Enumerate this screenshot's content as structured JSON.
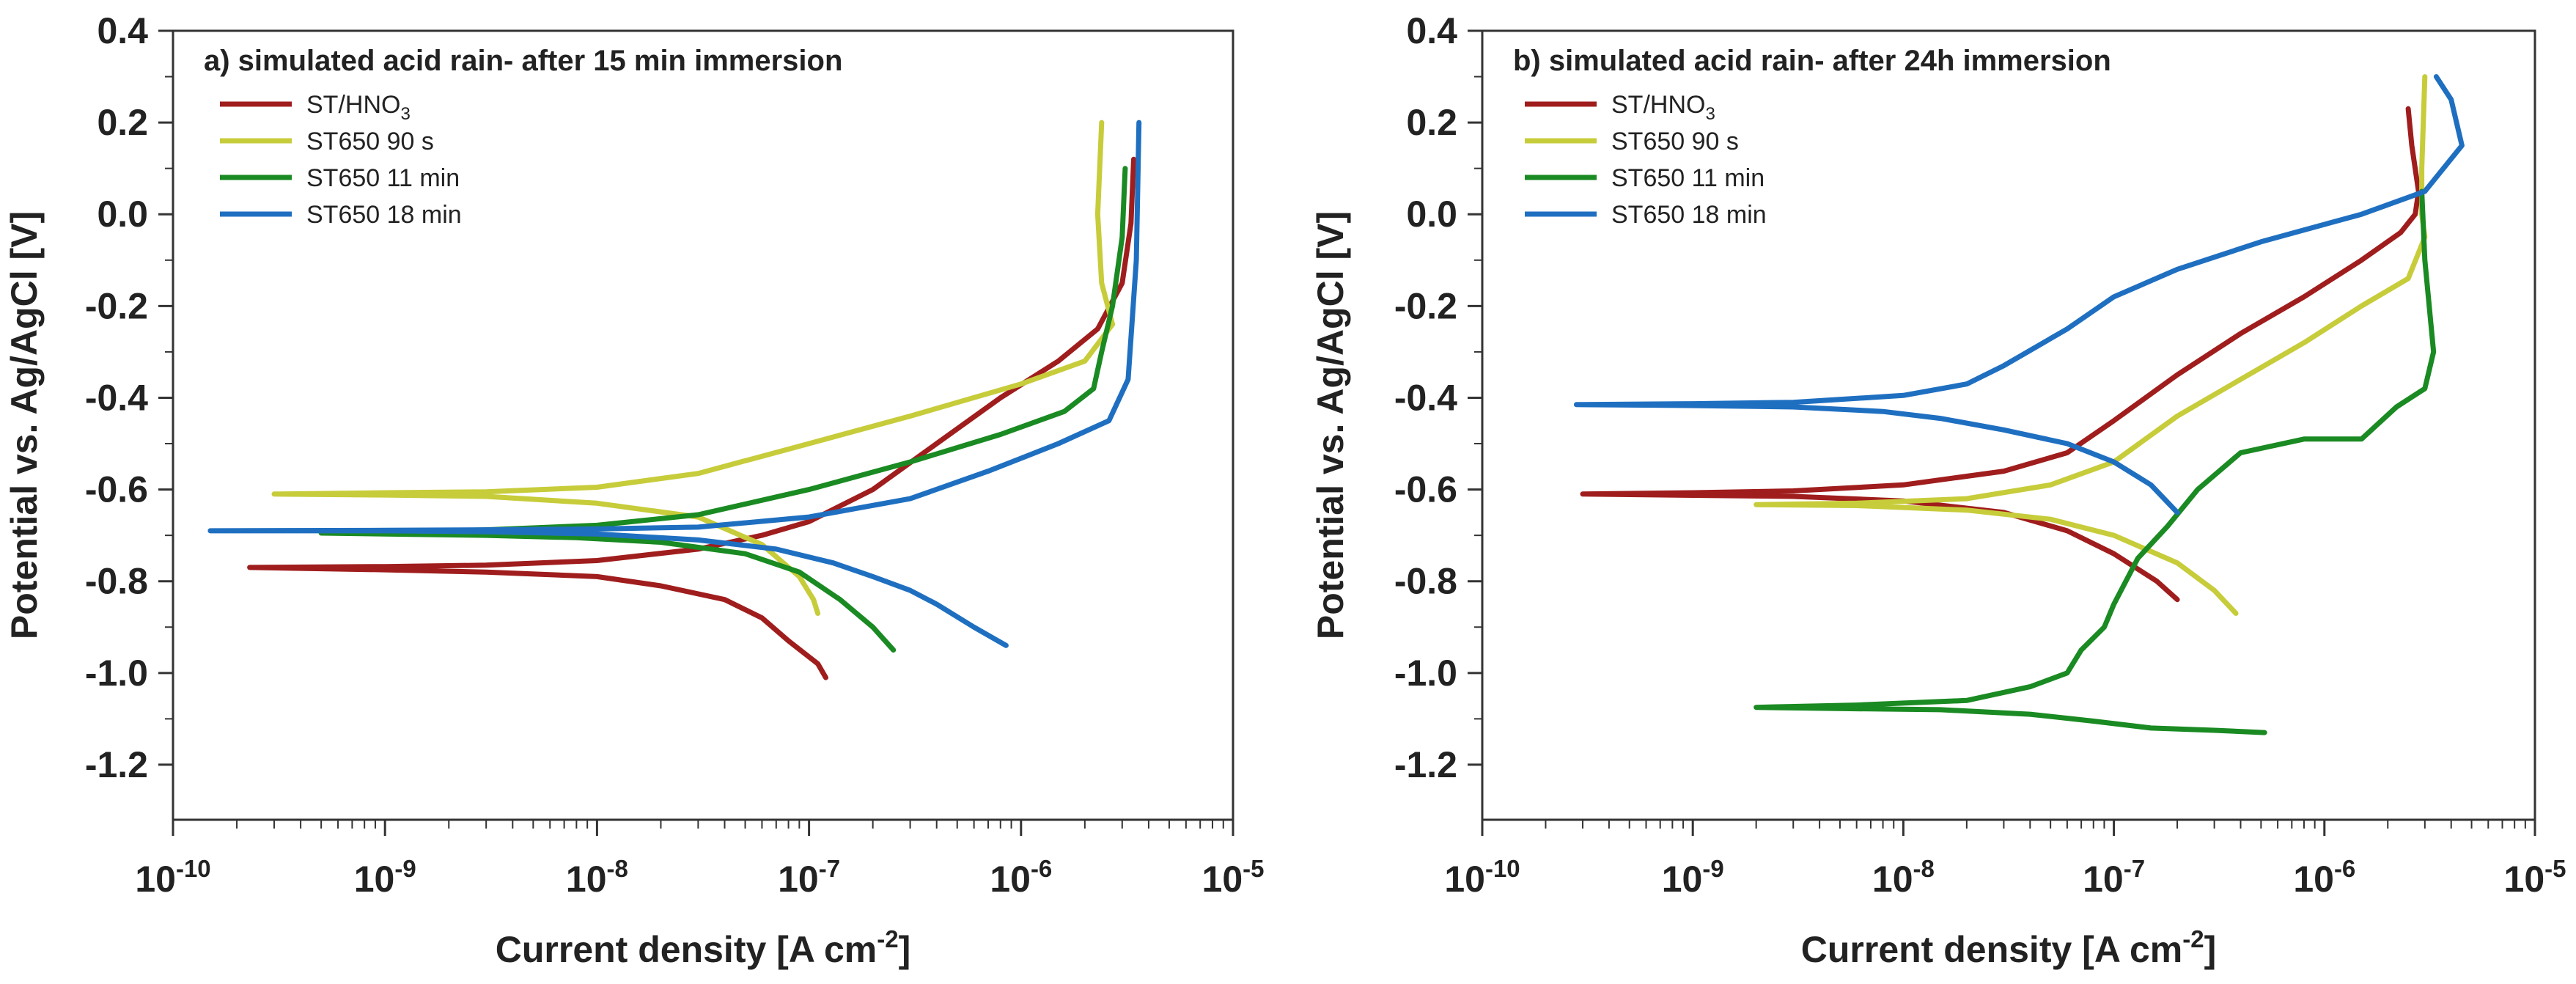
{
  "colors": {
    "red": "#a01d1d",
    "yellow": "#c7cc3a",
    "green": "#1a8a22",
    "blue": "#1f6fc1",
    "axis": "#333333"
  },
  "chart_data": [
    {
      "type": "line",
      "title": "a) simulated acid rain- after 15 min immersion",
      "xlabel": "Current density [A cm",
      "xlabel_sup": "-2",
      "xlabel_end": "]",
      "ylabel": "Potential vs. Ag/AgCl [V]",
      "xscale": "log",
      "xlim": [
        1e-10,
        1e-05
      ],
      "ylim": [
        -1.32,
        0.4
      ],
      "x_ticks": [
        {
          "base": "10",
          "exp": "-10"
        },
        {
          "base": "10",
          "exp": "-9"
        },
        {
          "base": "10",
          "exp": "-8"
        },
        {
          "base": "10",
          "exp": "-7"
        },
        {
          "base": "10",
          "exp": "-6"
        },
        {
          "base": "10",
          "exp": "-5"
        }
      ],
      "y_ticks": [
        "0.4",
        "0.2",
        "0.0",
        "-0.2",
        "-0.4",
        "-0.6",
        "-0.8",
        "-1.0",
        "-1.2"
      ],
      "legend_position": "top-left",
      "series": [
        {
          "name": "ST/HNO",
          "name_sub": "3",
          "color": "red",
          "x": [
            1.2e-07,
            1.1e-07,
            8e-08,
            6e-08,
            4e-08,
            2e-08,
            1e-08,
            3e-09,
            1e-09,
            2.3e-10,
            1e-09,
            3e-09,
            1e-08,
            3e-08,
            6e-08,
            1e-07,
            2e-07,
            4e-07,
            8e-07,
            1.5e-06,
            2.3e-06,
            3e-06,
            3.3e-06,
            3.4e-06
          ],
          "y": [
            -1.01,
            -0.98,
            -0.93,
            -0.88,
            -0.84,
            -0.81,
            -0.79,
            -0.78,
            -0.775,
            -0.77,
            -0.768,
            -0.765,
            -0.755,
            -0.73,
            -0.7,
            -0.67,
            -0.6,
            -0.5,
            -0.4,
            -0.32,
            -0.25,
            -0.15,
            -0.02,
            0.12
          ]
        },
        {
          "name": "ST650 90 s",
          "color": "yellow",
          "x": [
            1.1e-07,
            1.05e-07,
            9e-08,
            6e-08,
            3e-08,
            1e-08,
            3e-09,
            1e-09,
            3e-10,
            1e-09,
            3e-09,
            1e-08,
            3e-08,
            1e-07,
            3e-07,
            1e-06,
            2e-06,
            2.7e-06,
            2.4e-06,
            2.3e-06,
            2.4e-06
          ],
          "y": [
            -0.87,
            -0.84,
            -0.79,
            -0.72,
            -0.66,
            -0.63,
            -0.615,
            -0.612,
            -0.61,
            -0.607,
            -0.605,
            -0.595,
            -0.565,
            -0.5,
            -0.44,
            -0.37,
            -0.32,
            -0.24,
            -0.15,
            0.0,
            0.2
          ]
        },
        {
          "name": "ST650 11 min",
          "color": "green",
          "x": [
            2.5e-07,
            2e-07,
            1.4e-07,
            9e-08,
            5e-08,
            2e-08,
            8e-09,
            3e-09,
            1e-09,
            5e-10,
            1e-09,
            3e-09,
            1e-08,
            3e-08,
            1e-07,
            3e-07,
            8e-07,
            1.6e-06,
            2.2e-06,
            2.4e-06,
            2.7e-06,
            3e-06,
            3.1e-06
          ],
          "y": [
            -0.95,
            -0.9,
            -0.84,
            -0.78,
            -0.74,
            -0.715,
            -0.705,
            -0.7,
            -0.697,
            -0.695,
            -0.693,
            -0.688,
            -0.678,
            -0.655,
            -0.6,
            -0.54,
            -0.48,
            -0.43,
            -0.38,
            -0.3,
            -0.2,
            -0.05,
            0.1
          ]
        },
        {
          "name": "ST650 18 min",
          "color": "blue",
          "x": [
            8.5e-07,
            6e-07,
            4e-07,
            3e-07,
            2e-07,
            1.3e-07,
            7e-08,
            3e-08,
            1e-08,
            3e-09,
            1e-09,
            1.5e-10,
            1e-09,
            3e-09,
            1e-08,
            3e-08,
            1e-07,
            3e-07,
            7e-07,
            1.5e-06,
            2.6e-06,
            3.2e-06,
            3.5e-06,
            3.6e-06
          ],
          "y": [
            -0.94,
            -0.9,
            -0.85,
            -0.82,
            -0.79,
            -0.76,
            -0.73,
            -0.71,
            -0.697,
            -0.692,
            -0.69,
            -0.69,
            -0.689,
            -0.688,
            -0.686,
            -0.682,
            -0.66,
            -0.62,
            -0.56,
            -0.5,
            -0.45,
            -0.36,
            -0.1,
            0.2
          ]
        }
      ]
    },
    {
      "type": "line",
      "title": "b) simulated acid rain- after 24h immersion",
      "xlabel": "Current density [A cm",
      "xlabel_sup": "-2",
      "xlabel_end": "]",
      "ylabel": "Potential vs. Ag/AgCl [V]",
      "xscale": "log",
      "xlim": [
        1e-10,
        1e-05
      ],
      "ylim": [
        -1.32,
        0.4
      ],
      "x_ticks": [
        {
          "base": "10",
          "exp": "-10"
        },
        {
          "base": "10",
          "exp": "-9"
        },
        {
          "base": "10",
          "exp": "-8"
        },
        {
          "base": "10",
          "exp": "-7"
        },
        {
          "base": "10",
          "exp": "-6"
        },
        {
          "base": "10",
          "exp": "-5"
        }
      ],
      "y_ticks": [
        "0.4",
        "0.2",
        "0.0",
        "-0.2",
        "-0.4",
        "-0.6",
        "-0.8",
        "-1.0",
        "-1.2"
      ],
      "legend_position": "top-left",
      "series": [
        {
          "name": "ST/HNO",
          "name_sub": "3",
          "color": "red",
          "x": [
            2e-07,
            1.6e-07,
            1e-07,
            6e-08,
            3e-08,
            1e-08,
            3e-09,
            3e-10,
            1e-09,
            3e-09,
            1e-08,
            3e-08,
            6e-08,
            1e-07,
            2e-07,
            4e-07,
            8e-07,
            1.5e-06,
            2.3e-06,
            2.7e-06,
            2.8e-06,
            2.6e-06,
            2.5e-06
          ],
          "y": [
            -0.84,
            -0.8,
            -0.74,
            -0.69,
            -0.65,
            -0.625,
            -0.615,
            -0.61,
            -0.607,
            -0.603,
            -0.59,
            -0.56,
            -0.52,
            -0.45,
            -0.35,
            -0.26,
            -0.18,
            -0.1,
            -0.04,
            0.0,
            0.05,
            0.15,
            0.23
          ]
        },
        {
          "name": "ST650 90 s",
          "color": "yellow",
          "x": [
            3.8e-07,
            3e-07,
            2e-07,
            1e-07,
            5e-08,
            2e-08,
            6e-09,
            2e-09,
            6e-09,
            2e-08,
            5e-08,
            1e-07,
            2e-07,
            4e-07,
            8e-07,
            1.5e-06,
            2.5e-06,
            3e-06,
            2.9e-06,
            2.9e-06,
            3e-06
          ],
          "y": [
            -0.87,
            -0.82,
            -0.76,
            -0.7,
            -0.665,
            -0.645,
            -0.635,
            -0.633,
            -0.63,
            -0.62,
            -0.59,
            -0.54,
            -0.44,
            -0.36,
            -0.28,
            -0.2,
            -0.14,
            -0.05,
            0.0,
            0.1,
            0.3
          ]
        },
        {
          "name": "ST650 11 min",
          "color": "green",
          "x": [
            5.2e-07,
            3e-07,
            1.5e-07,
            8e-08,
            4e-08,
            1.5e-08,
            6e-09,
            2e-09,
            6e-09,
            2e-08,
            4e-08,
            6e-08,
            7e-08,
            9e-08,
            1e-07,
            1.3e-07,
            1.8e-07,
            2.5e-07,
            4e-07,
            8e-07,
            1.5e-06,
            2.2e-06,
            3e-06,
            3.3e-06,
            3e-06,
            2.9e-06
          ],
          "y": [
            -1.13,
            -1.125,
            -1.12,
            -1.105,
            -1.09,
            -1.08,
            -1.078,
            -1.075,
            -1.07,
            -1.06,
            -1.03,
            -1.0,
            -0.95,
            -0.9,
            -0.85,
            -0.75,
            -0.68,
            -0.6,
            -0.52,
            -0.49,
            -0.49,
            -0.42,
            -0.38,
            -0.3,
            -0.1,
            0.05
          ]
        },
        {
          "name": "ST650 18 min",
          "color": "blue",
          "x": [
            2e-07,
            1.5e-07,
            1e-07,
            6e-08,
            3e-08,
            1.5e-08,
            8e-09,
            3e-09,
            1e-09,
            2.8e-10,
            1e-09,
            3e-09,
            1e-08,
            2e-08,
            3e-08,
            6e-08,
            1e-07,
            2e-07,
            5e-07,
            1.5e-06,
            3e-06,
            4.5e-06,
            4e-06,
            3.4e-06
          ],
          "y": [
            -0.65,
            -0.59,
            -0.54,
            -0.5,
            -0.47,
            -0.445,
            -0.43,
            -0.42,
            -0.417,
            -0.415,
            -0.413,
            -0.41,
            -0.395,
            -0.37,
            -0.33,
            -0.25,
            -0.18,
            -0.12,
            -0.06,
            0.0,
            0.05,
            0.15,
            0.25,
            0.3
          ]
        }
      ]
    }
  ]
}
